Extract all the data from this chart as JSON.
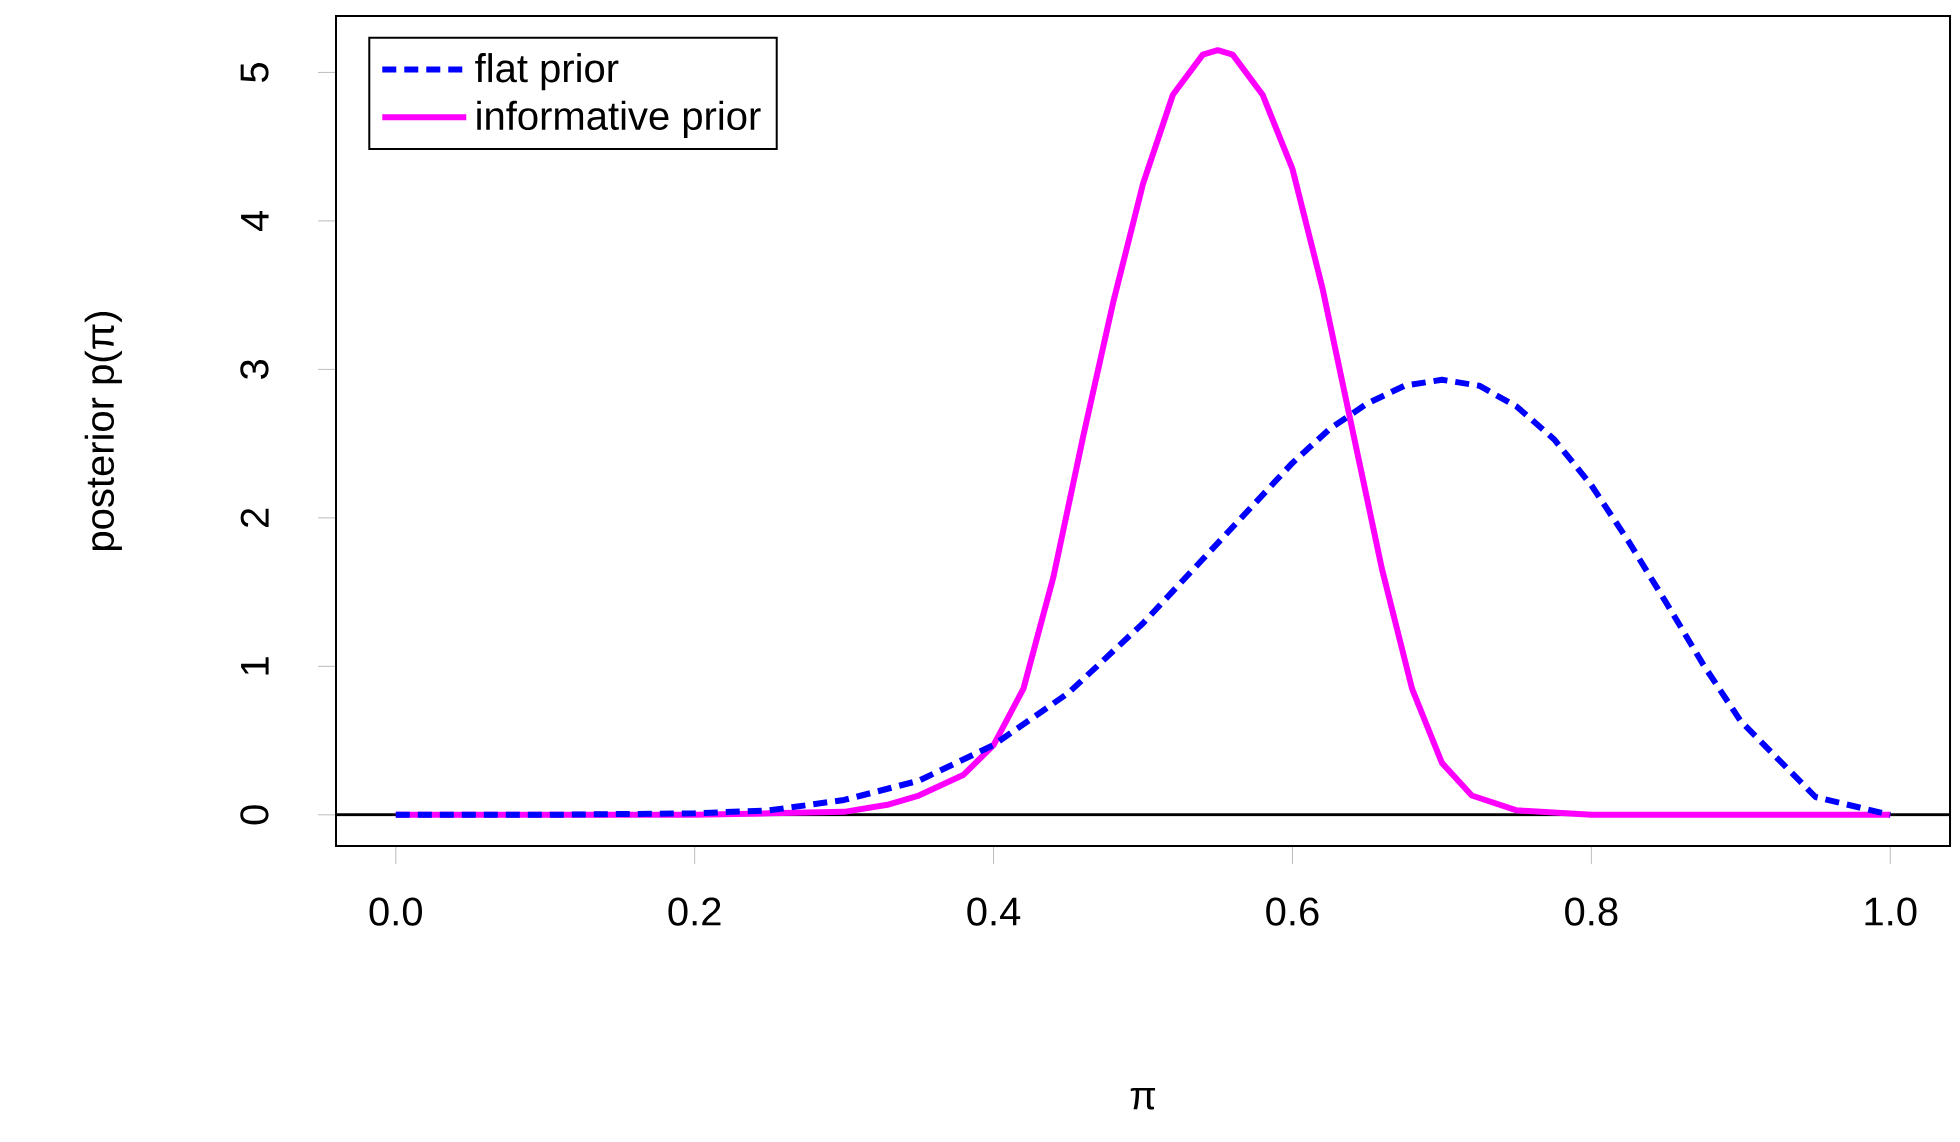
{
  "chart_data": {
    "type": "line",
    "xlabel": "π",
    "ylabel": "posterior  p(π)",
    "xlim": [
      -0.04,
      1.04
    ],
    "ylim": [
      -0.21,
      5.38
    ],
    "xticks": [
      {
        "value": 0,
        "label": "0.0"
      },
      {
        "value": 0.2,
        "label": "0.2"
      },
      {
        "value": 0.4,
        "label": "0.4"
      },
      {
        "value": 0.6,
        "label": "0.6"
      },
      {
        "value": 0.8,
        "label": "0.8"
      },
      {
        "value": 1,
        "label": "1.0"
      }
    ],
    "yticks": [
      0,
      1,
      2,
      3,
      4,
      5
    ],
    "grid": false,
    "legend": "top left",
    "marker": "none",
    "ref_lines": [
      {
        "axis": "y",
        "value": 0,
        "color": "#000000",
        "line_style": "solid"
      }
    ],
    "series": [
      {
        "name": "flat prior",
        "color": "#0000ff",
        "line_style": "dashed",
        "x": [
          0,
          0.1,
          0.2,
          0.25,
          0.3,
          0.35,
          0.4,
          0.45,
          0.5,
          0.55,
          0.6,
          0.625,
          0.65,
          0.675,
          0.7,
          0.725,
          0.75,
          0.775,
          0.8,
          0.825,
          0.85,
          0.875,
          0.9,
          0.95,
          1
        ],
        "values": [
          0,
          0,
          0.01,
          0.03,
          0.1,
          0.23,
          0.47,
          0.82,
          1.29,
          1.83,
          2.37,
          2.6,
          2.77,
          2.89,
          2.93,
          2.89,
          2.75,
          2.53,
          2.22,
          1.84,
          1.43,
          1.01,
          0.63,
          0.12,
          0
        ]
      },
      {
        "name": "informative prior",
        "color": "#ff00ff",
        "line_style": "solid",
        "x": [
          0,
          0.1,
          0.2,
          0.25,
          0.3,
          0.33,
          0.35,
          0.38,
          0.4,
          0.42,
          0.44,
          0.46,
          0.48,
          0.5,
          0.52,
          0.54,
          0.55,
          0.56,
          0.58,
          0.6,
          0.62,
          0.64,
          0.66,
          0.68,
          0.7,
          0.72,
          0.75,
          0.8,
          0.9,
          1
        ],
        "values": [
          0,
          0,
          0,
          0.01,
          0.02,
          0.07,
          0.13,
          0.27,
          0.47,
          0.85,
          1.6,
          2.55,
          3.45,
          4.25,
          4.85,
          5.12,
          5.15,
          5.12,
          4.85,
          4.35,
          3.55,
          2.6,
          1.65,
          0.85,
          0.35,
          0.13,
          0.03,
          0,
          0,
          0
        ]
      }
    ]
  }
}
